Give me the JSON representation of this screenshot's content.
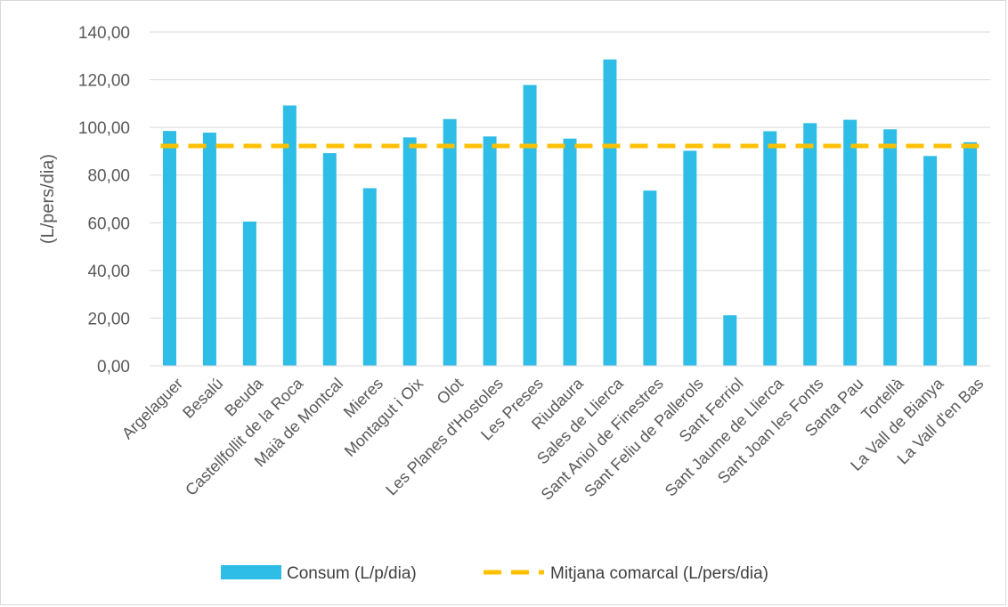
{
  "chart_data": {
    "type": "bar",
    "title": "",
    "xlabel": "",
    "ylabel": "(L/pers/dia)",
    "ylim": [
      0,
      140
    ],
    "ytick_step": 20,
    "ytick_labels": [
      "0,00",
      "20,00",
      "40,00",
      "60,00",
      "80,00",
      "100,00",
      "120,00",
      "140,00"
    ],
    "grid": "horizontal",
    "legend_position": "bottom",
    "categories": [
      "Argelaguer",
      "Besalú",
      "Beuda",
      "Castellfollit de la Roca",
      "Maià de Montcal",
      "Mieres",
      "Montagut i Oix",
      "Olot",
      "Les Planes d'Hostoles",
      "Les Preses",
      "Riudaura",
      "Sales de Llierca",
      "Sant Aniol de Finestres",
      "Sant Feliu de Pallerols",
      "Sant Ferriol",
      "Sant Jaume de Llierca",
      "Sant Joan les Fonts",
      "Santa Pau",
      "Tortellà",
      "La Vall de Bianya",
      "La Vall d'en Bas"
    ],
    "series": [
      {
        "name": "Consum (L/p/dia)",
        "type": "bar",
        "color": "#2EBDE6",
        "values": [
          98.5,
          97.8,
          60.5,
          109.2,
          89.2,
          74.5,
          95.8,
          103.5,
          96.2,
          117.8,
          95.3,
          128.5,
          73.5,
          90.2,
          21.2,
          98.4,
          101.8,
          103.2,
          99.2,
          88.0,
          93.8
        ]
      },
      {
        "name": "Mitjana comarcal (L/pers/dia)",
        "type": "line",
        "style": "dashed",
        "color": "#FFC000",
        "value": 92.2
      }
    ]
  }
}
